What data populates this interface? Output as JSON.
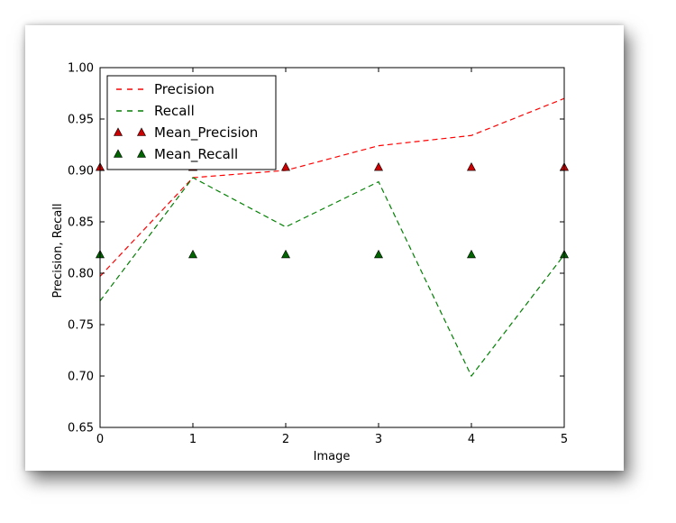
{
  "chart_data": {
    "type": "line",
    "xlabel": "Image",
    "ylabel": "Precision, Recall",
    "xlim": [
      0,
      5
    ],
    "ylim": [
      0.65,
      1.0
    ],
    "x_ticks": [
      "0",
      "1",
      "2",
      "3",
      "4",
      "5"
    ],
    "y_ticks": [
      "0.65",
      "0.70",
      "0.75",
      "0.80",
      "0.85",
      "0.90",
      "0.95",
      "1.00"
    ],
    "x": [
      0,
      1,
      2,
      3,
      4,
      5
    ],
    "series": [
      {
        "name": "Precision",
        "style": "dashed-line",
        "color": "#ff0000",
        "values": [
          0.797,
          0.893,
          0.9,
          0.924,
          0.934,
          0.97
        ]
      },
      {
        "name": "Recall",
        "style": "dashed-line",
        "color": "#008000",
        "values": [
          0.773,
          0.893,
          0.845,
          0.889,
          0.7,
          0.818
        ]
      },
      {
        "name": "Mean_Precision",
        "style": "triangle-markers",
        "color": "#cc0000",
        "values": [
          0.903,
          0.903,
          0.903,
          0.903,
          0.903,
          0.903
        ]
      },
      {
        "name": "Mean_Recall",
        "style": "triangle-markers",
        "color": "#006400",
        "values": [
          0.818,
          0.818,
          0.818,
          0.818,
          0.818,
          0.818
        ]
      }
    ],
    "legend_position": "upper-left",
    "grid": false
  }
}
